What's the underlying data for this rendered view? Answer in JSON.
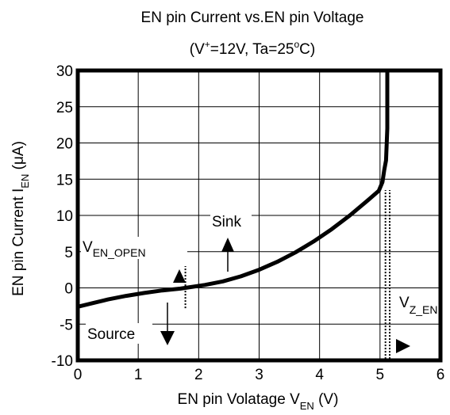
{
  "chart_data": {
    "type": "line",
    "title": "EN pin Current vs.EN pin Voltage",
    "subtitle_parts": [
      "(V",
      "+",
      "=12V, Ta=25",
      "o",
      "C)"
    ],
    "xlabel_parts": [
      "EN pin Volatage V",
      "EN",
      "  (V)"
    ],
    "ylabel_parts": [
      "EN pin Current I",
      "EN",
      "  (μA)"
    ],
    "xlim": [
      0,
      6
    ],
    "ylim": [
      -10,
      30
    ],
    "grid": true,
    "x_ticks": [
      {
        "value": 0,
        "label": "0"
      },
      {
        "value": 1,
        "label": "1"
      },
      {
        "value": 2,
        "label": "2"
      },
      {
        "value": 3,
        "label": "3"
      },
      {
        "value": 4,
        "label": "4"
      },
      {
        "value": 5,
        "label": "5"
      },
      {
        "value": 6,
        "label": "6"
      }
    ],
    "y_ticks": [
      {
        "value": 30,
        "label": "30"
      },
      {
        "value": 25,
        "label": "25"
      },
      {
        "value": 20,
        "label": "20"
      },
      {
        "value": 15,
        "label": "15"
      },
      {
        "value": 10,
        "label": "10"
      },
      {
        "value": 5,
        "label": "5"
      },
      {
        "value": 0,
        "label": "0"
      },
      {
        "value": -5,
        "label": "-5"
      },
      {
        "value": -10,
        "label": "-10"
      }
    ],
    "series": [
      {
        "x": [
          0,
          0.25,
          0.5,
          0.8,
          1.1,
          1.4,
          1.7,
          1.9,
          2.1,
          2.4,
          2.7,
          3.0,
          3.3,
          3.6,
          3.9,
          4.2,
          4.5,
          4.8,
          4.98,
          5.04,
          5.07,
          5.1,
          5.12,
          5.12
        ],
        "y": [
          -2.6,
          -2.1,
          -1.6,
          -1.1,
          -0.7,
          -0.35,
          -0.1,
          0.15,
          0.4,
          0.9,
          1.6,
          2.5,
          3.6,
          4.9,
          6.4,
          8.1,
          10.0,
          12.1,
          13.4,
          14.6,
          16.3,
          17.6,
          22.0,
          30.0
        ]
      }
    ],
    "markers": [
      {
        "x": 1.78,
        "y_from": -2.8,
        "y_to": 3.0
      },
      {
        "x": 5.16,
        "y_from": -9.8,
        "y_to": 13.5
      },
      {
        "x": 5.09,
        "y_from": -9.8,
        "y_to": 13.5
      }
    ],
    "annotations": {
      "sink": "Sink",
      "source": "Source",
      "v_en_open_parts": [
        "V",
        "EN_OPEN"
      ],
      "v_z_en_parts": [
        "V",
        "Z_EN"
      ]
    }
  }
}
